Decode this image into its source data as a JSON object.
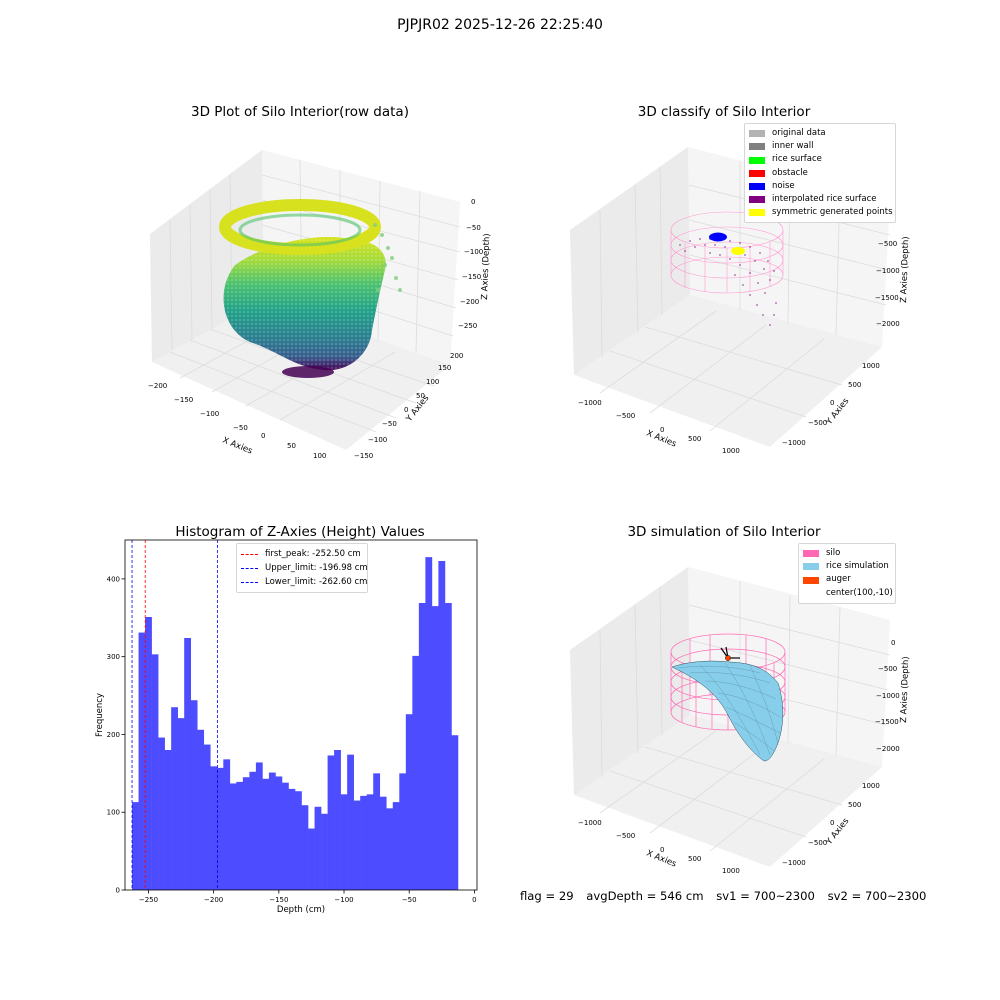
{
  "figure_title": "PJPJR02 2025-12-26 22:25:40",
  "panels": {
    "raw": {
      "title": "3D Plot of Silo Interior(row data)",
      "xlabel": "X Axies",
      "ylabel": "Y Axies",
      "zlabel": "Z Axies (Depth)",
      "x_ticks": [
        "−200",
        "−150",
        "−100",
        "−50",
        "0",
        "50",
        "100"
      ],
      "y_ticks": [
        "200",
        "150",
        "100",
        "50",
        "0",
        "−50",
        "−100",
        "−150"
      ],
      "z_ticks": [
        "0",
        "−50",
        "−100",
        "−150",
        "−200",
        "−250"
      ]
    },
    "classify": {
      "title": "3D classify of Silo Interior",
      "xlabel": "X Axies",
      "ylabel": "Y Axies",
      "zlabel": "Z Axies (Depth)",
      "x_ticks": [
        "−1000",
        "−500",
        "0",
        "500",
        "1000"
      ],
      "y_ticks": [
        "1000",
        "500",
        "0",
        "−500",
        "−1000"
      ],
      "z_ticks": [
        "0",
        "−500",
        "−1000",
        "−1500",
        "−2000"
      ],
      "legend": [
        {
          "label": "original data",
          "color": "#b3b3b3"
        },
        {
          "label": "inner wall",
          "color": "#808080"
        },
        {
          "label": "rice surface",
          "color": "#00ff00"
        },
        {
          "label": "obstacle",
          "color": "#ff0000"
        },
        {
          "label": "noise",
          "color": "#0000ff"
        },
        {
          "label": "interpolated rice surface",
          "color": "#800080"
        },
        {
          "label": "symmetric generated points",
          "color": "#ffff00"
        }
      ]
    },
    "simulation": {
      "title": "3D simulation of Silo Interior",
      "xlabel": "X Axies",
      "ylabel": "Y Axies",
      "zlabel": "Z Axies (Depth)",
      "x_ticks": [
        "−1000",
        "−500",
        "0",
        "500",
        "1000"
      ],
      "y_ticks": [
        "1000",
        "500",
        "0",
        "−500",
        "−1000"
      ],
      "z_ticks": [
        "0",
        "−500",
        "−1000",
        "−1500",
        "−2000"
      ],
      "legend": [
        {
          "label": "silo",
          "color": "#ff69b4"
        },
        {
          "label": "rice simulation",
          "color": "#87ceeb"
        },
        {
          "label": "auger",
          "color": "#ff4500"
        },
        {
          "label": "center(100,-10)",
          "color": ""
        }
      ]
    }
  },
  "status": {
    "flag": "flag = 29",
    "avg_depth": "avgDepth = 546 cm",
    "sv1": "sv1 = 700~2300",
    "sv2": "sv2 = 700~2300"
  },
  "chart_data": {
    "type": "bar",
    "title": "Histogram of Z-Axies (Height) Values",
    "xlabel": "Depth (cm)",
    "ylabel": "Frequency",
    "xlim": [
      -268,
      2
    ],
    "ylim": [
      0,
      450
    ],
    "x_ticks": [
      -250,
      -200,
      -150,
      -100,
      -50,
      0
    ],
    "x_tick_labels": [
      "−250",
      "−200",
      "−150",
      "−100",
      "−50",
      "0"
    ],
    "y_ticks": [
      0,
      100,
      200,
      300,
      400
    ],
    "y_tick_labels": [
      "0",
      "100",
      "200",
      "300",
      "400"
    ],
    "bar_color": "#4d4dff",
    "bin_start": -262.6,
    "bin_width": 5.0,
    "values": [
      113,
      331,
      351,
      303,
      196,
      180,
      235,
      221,
      324,
      244,
      206,
      187,
      159,
      157,
      168,
      137,
      139,
      145,
      152,
      164,
      143,
      151,
      146,
      138,
      130,
      127,
      109,
      79,
      107,
      98,
      173,
      180,
      123,
      174,
      115,
      121,
      123,
      150,
      120,
      105,
      113,
      150,
      226,
      301,
      369,
      428,
      365,
      423,
      369,
      199
    ],
    "vlines": [
      {
        "x": -252.5,
        "color": "#ff0000",
        "label": "first_peak: -252.50 cm"
      },
      {
        "x": -196.98,
        "color": "#0000ff",
        "label": "Upper_limit: -196.98 cm"
      },
      {
        "x": -262.6,
        "color": "#0000ff",
        "label": "Lower_limit: -262.60 cm"
      }
    ],
    "legend_position": "top-center"
  }
}
